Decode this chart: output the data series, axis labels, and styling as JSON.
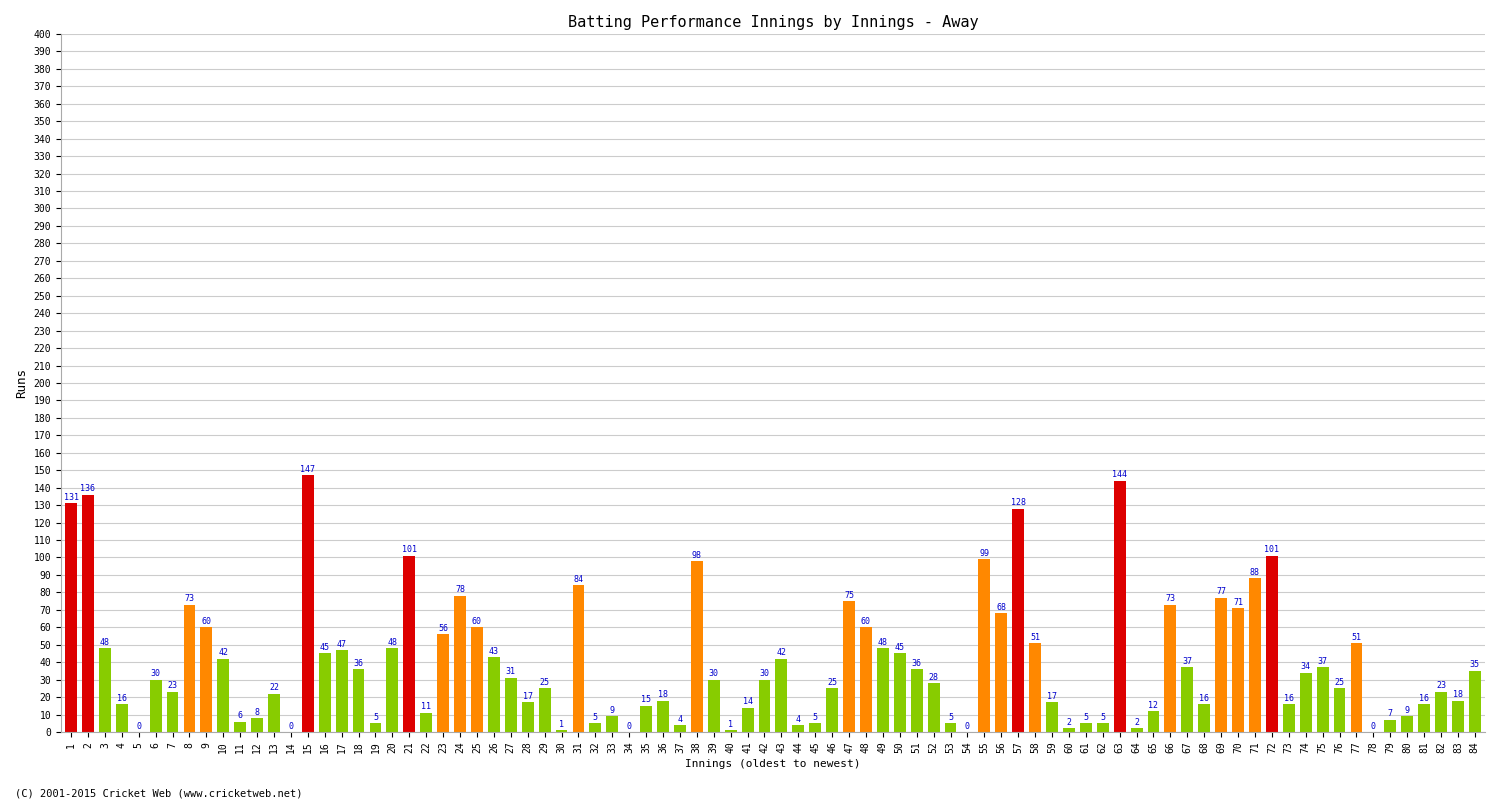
{
  "title": "Batting Performance Innings by Innings - Away",
  "xlabel": "Innings (oldest to newest)",
  "ylabel": "Runs",
  "ylim": [
    0,
    400
  ],
  "ytick_step": 10,
  "background_color": "#ffffff",
  "grid_color": "#cccccc",
  "label_color": "#0000cc",
  "innings": [
    {
      "num": "1",
      "val": 131,
      "color": "#dd0000"
    },
    {
      "num": "2",
      "val": 136,
      "color": "#dd0000"
    },
    {
      "num": "3",
      "val": 48,
      "color": "#88cc00"
    },
    {
      "num": "4",
      "val": 16,
      "color": "#88cc00"
    },
    {
      "num": "5",
      "val": 0,
      "color": "#88cc00"
    },
    {
      "num": "6",
      "val": 30,
      "color": "#88cc00"
    },
    {
      "num": "7",
      "val": 23,
      "color": "#88cc00"
    },
    {
      "num": "8",
      "val": 73,
      "color": "#ff8800"
    },
    {
      "num": "9",
      "val": 60,
      "color": "#ff8800"
    },
    {
      "num": "10",
      "val": 42,
      "color": "#88cc00"
    },
    {
      "num": "11",
      "val": 6,
      "color": "#88cc00"
    },
    {
      "num": "12",
      "val": 8,
      "color": "#88cc00"
    },
    {
      "num": "13",
      "val": 22,
      "color": "#88cc00"
    },
    {
      "num": "14",
      "val": 0,
      "color": "#88cc00"
    },
    {
      "num": "15",
      "val": 147,
      "color": "#dd0000"
    },
    {
      "num": "16",
      "val": 45,
      "color": "#88cc00"
    },
    {
      "num": "17",
      "val": 47,
      "color": "#88cc00"
    },
    {
      "num": "18",
      "val": 36,
      "color": "#88cc00"
    },
    {
      "num": "19",
      "val": 5,
      "color": "#88cc00"
    },
    {
      "num": "20",
      "val": 48,
      "color": "#88cc00"
    },
    {
      "num": "21",
      "val": 101,
      "color": "#dd0000"
    },
    {
      "num": "22",
      "val": 11,
      "color": "#88cc00"
    },
    {
      "num": "23",
      "val": 56,
      "color": "#ff8800"
    },
    {
      "num": "24",
      "val": 78,
      "color": "#ff8800"
    },
    {
      "num": "25",
      "val": 60,
      "color": "#ff8800"
    },
    {
      "num": "26",
      "val": 43,
      "color": "#88cc00"
    },
    {
      "num": "27",
      "val": 31,
      "color": "#88cc00"
    },
    {
      "num": "28",
      "val": 17,
      "color": "#88cc00"
    },
    {
      "num": "29",
      "val": 25,
      "color": "#88cc00"
    },
    {
      "num": "30",
      "val": 1,
      "color": "#88cc00"
    },
    {
      "num": "31",
      "val": 84,
      "color": "#ff8800"
    },
    {
      "num": "32",
      "val": 5,
      "color": "#88cc00"
    },
    {
      "num": "33",
      "val": 9,
      "color": "#88cc00"
    },
    {
      "num": "34",
      "val": 0,
      "color": "#88cc00"
    },
    {
      "num": "35",
      "val": 15,
      "color": "#88cc00"
    },
    {
      "num": "36",
      "val": 18,
      "color": "#88cc00"
    },
    {
      "num": "37",
      "val": 4,
      "color": "#88cc00"
    },
    {
      "num": "38",
      "val": 98,
      "color": "#ff8800"
    },
    {
      "num": "39",
      "val": 30,
      "color": "#88cc00"
    },
    {
      "num": "40",
      "val": 1,
      "color": "#88cc00"
    },
    {
      "num": "41",
      "val": 14,
      "color": "#88cc00"
    },
    {
      "num": "42",
      "val": 30,
      "color": "#88cc00"
    },
    {
      "num": "43",
      "val": 42,
      "color": "#88cc00"
    },
    {
      "num": "44",
      "val": 4,
      "color": "#88cc00"
    },
    {
      "num": "45",
      "val": 5,
      "color": "#88cc00"
    },
    {
      "num": "46",
      "val": 25,
      "color": "#88cc00"
    },
    {
      "num": "47",
      "val": 75,
      "color": "#ff8800"
    },
    {
      "num": "48",
      "val": 60,
      "color": "#ff8800"
    },
    {
      "num": "49",
      "val": 48,
      "color": "#88cc00"
    },
    {
      "num": "50",
      "val": 45,
      "color": "#88cc00"
    },
    {
      "num": "51",
      "val": 36,
      "color": "#88cc00"
    },
    {
      "num": "52",
      "val": 28,
      "color": "#88cc00"
    },
    {
      "num": "53",
      "val": 5,
      "color": "#88cc00"
    },
    {
      "num": "54",
      "val": 0,
      "color": "#88cc00"
    },
    {
      "num": "55",
      "val": 99,
      "color": "#ff8800"
    },
    {
      "num": "56",
      "val": 68,
      "color": "#ff8800"
    },
    {
      "num": "57",
      "val": 128,
      "color": "#dd0000"
    },
    {
      "num": "58",
      "val": 51,
      "color": "#ff8800"
    },
    {
      "num": "59",
      "val": 17,
      "color": "#88cc00"
    },
    {
      "num": "60",
      "val": 2,
      "color": "#88cc00"
    },
    {
      "num": "61",
      "val": 5,
      "color": "#88cc00"
    },
    {
      "num": "62",
      "val": 5,
      "color": "#88cc00"
    },
    {
      "num": "63",
      "val": 144,
      "color": "#dd0000"
    },
    {
      "num": "64",
      "val": 2,
      "color": "#88cc00"
    },
    {
      "num": "65",
      "val": 12,
      "color": "#88cc00"
    },
    {
      "num": "66",
      "val": 73,
      "color": "#ff8800"
    },
    {
      "num": "67",
      "val": 37,
      "color": "#88cc00"
    },
    {
      "num": "68",
      "val": 16,
      "color": "#88cc00"
    },
    {
      "num": "69",
      "val": 77,
      "color": "#ff8800"
    },
    {
      "num": "70",
      "val": 71,
      "color": "#ff8800"
    },
    {
      "num": "71",
      "val": 88,
      "color": "#ff8800"
    },
    {
      "num": "72",
      "val": 101,
      "color": "#dd0000"
    },
    {
      "num": "73",
      "val": 16,
      "color": "#88cc00"
    },
    {
      "num": "74",
      "val": 34,
      "color": "#88cc00"
    },
    {
      "num": "75",
      "val": 37,
      "color": "#88cc00"
    },
    {
      "num": "76",
      "val": 25,
      "color": "#88cc00"
    },
    {
      "num": "77",
      "val": 51,
      "color": "#ff8800"
    },
    {
      "num": "78",
      "val": 0,
      "color": "#88cc00"
    },
    {
      "num": "79",
      "val": 7,
      "color": "#88cc00"
    },
    {
      "num": "80",
      "val": 9,
      "color": "#88cc00"
    },
    {
      "num": "81",
      "val": 16,
      "color": "#88cc00"
    },
    {
      "num": "82",
      "val": 23,
      "color": "#88cc00"
    },
    {
      "num": "83",
      "val": 18,
      "color": "#88cc00"
    },
    {
      "num": "84",
      "val": 35,
      "color": "#88cc00"
    }
  ],
  "bar_width": 0.7,
  "label_fontsize": 6.0,
  "axis_tick_fontsize": 7,
  "title_fontsize": 11,
  "footer": "(C) 2001-2015 Cricket Web (www.cricketweb.net)"
}
